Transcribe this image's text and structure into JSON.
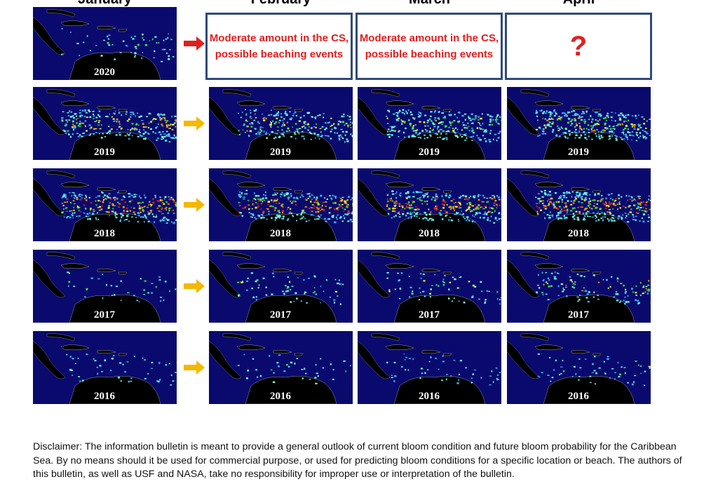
{
  "columns": [
    "January",
    "February",
    "March",
    "April"
  ],
  "rows": [
    {
      "years": [
        "2020"
      ],
      "outlook": [
        "Moderate amount in the CS, possible beaching events",
        "Moderate amount in the CS, possible beaching events",
        "?"
      ]
    },
    {
      "years": [
        "2019",
        "2019",
        "2019",
        "2019"
      ]
    },
    {
      "years": [
        "2018",
        "2018",
        "2018",
        "2018"
      ]
    },
    {
      "years": [
        "2017",
        "2017",
        "2017",
        "2017"
      ]
    },
    {
      "years": [
        "2016",
        "2016",
        "2016",
        "2016"
      ]
    }
  ],
  "disclaimer": "Disclaimer: The information bulletin is meant to provide a general outlook of current bloom condition and future bloom probability for the Caribbean Sea. By no means should it be used for commercial purpose, or used for predicting bloom conditions for a specific location or beach. The authors of this bulletin, as well as USF and NASA, take no responsibility for improper use or interpretation of the bulletin."
}
